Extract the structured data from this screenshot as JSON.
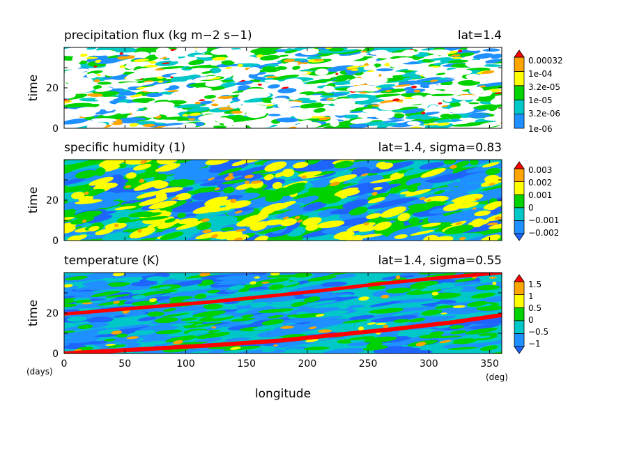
{
  "chart_data": [
    {
      "type": "heatmap",
      "title": "precipitation flux (kg m−2 s−1)",
      "annotation": "lat=1.4",
      "ylabel": "time",
      "xlim": [
        0,
        360
      ],
      "ylim": [
        0,
        40
      ],
      "yticks": [
        "0",
        "20"
      ],
      "colorbar": {
        "labels": [
          "0.00032",
          "1e-04",
          "3.2e-05",
          "1e-05",
          "3.2e-06",
          "1e-06"
        ],
        "colors": [
          "#1e90ff",
          "#00c8c8",
          "#00d200",
          "#ffff00",
          "#ffa500",
          "#ff0000"
        ],
        "min_arrow": false,
        "max_arrow": true
      },
      "below_range_color": "#ffffff"
    },
    {
      "type": "heatmap",
      "title": "specific humidity (1)",
      "annotation": "lat=1.4, sigma=0.83",
      "ylabel": "time",
      "xlim": [
        0,
        360
      ],
      "ylim": [
        0,
        40
      ],
      "yticks": [
        "0",
        "20"
      ],
      "colorbar": {
        "labels": [
          "0.003",
          "0.002",
          "0.001",
          "0",
          "−0.001",
          "−0.002"
        ],
        "colors": [
          "#1e64ff",
          "#1e90ff",
          "#00c8c8",
          "#00d200",
          "#ffff00",
          "#ffa500",
          "#ff0000"
        ],
        "min_arrow": true,
        "max_arrow": true
      }
    },
    {
      "type": "heatmap",
      "title": "temperature (K)",
      "annotation": "lat=1.4, sigma=0.55",
      "ylabel": "time",
      "xlim": [
        0,
        360
      ],
      "ylim": [
        0,
        40
      ],
      "yticks": [
        "0",
        "20"
      ],
      "colorbar": {
        "labels": [
          "1.5",
          "1",
          "0.5",
          "0",
          "−0.5",
          "−1"
        ],
        "colors": [
          "#1e64ff",
          "#1e90ff",
          "#00c8c8",
          "#00d200",
          "#ffff00",
          "#ffa500",
          "#ff0000"
        ],
        "min_arrow": true,
        "max_arrow": true
      }
    }
  ],
  "xaxis": {
    "label": "longitude",
    "ticks": [
      "0",
      "50",
      "100",
      "150",
      "200",
      "250",
      "300",
      "350"
    ],
    "tick_values": [
      0,
      50,
      100,
      150,
      200,
      250,
      300,
      350
    ],
    "left_unit": "(days)",
    "right_unit": "(deg)"
  }
}
